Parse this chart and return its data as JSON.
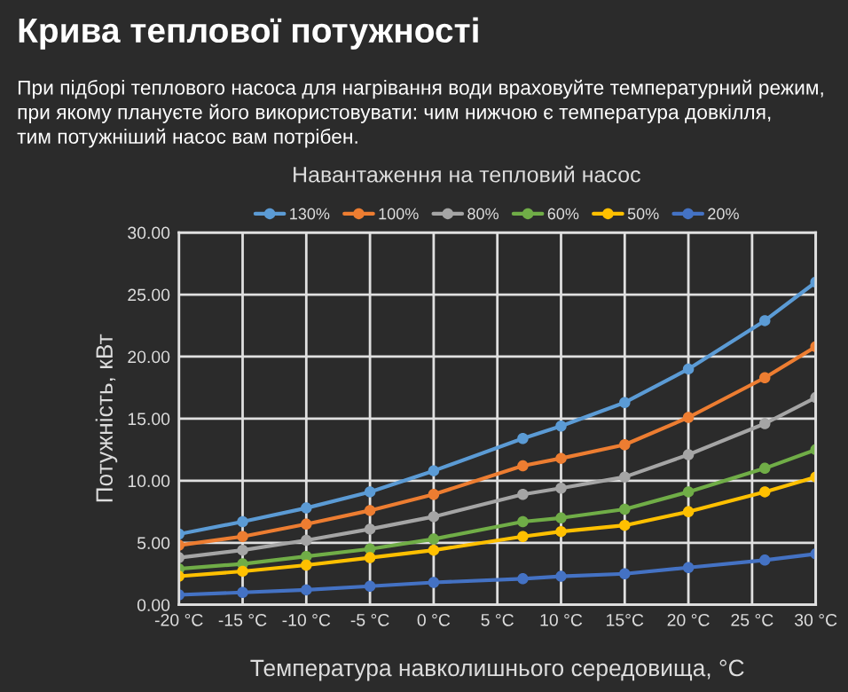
{
  "chart_data": {
    "type": "line",
    "title": "Крива теплової потужності",
    "subtitle": "При підборі теплового насоса для нагрівання води враховуйте температурний режим,\nпри якому плануєте його використовувати: чим нижчою є температура довкілля,\nтим потужніший насос вам потрібен.",
    "annotations": [
      "Навантаження на тепловий насос"
    ],
    "xlabel": "Температура навколишнього середовища, °C",
    "ylabel": "Потужність, кВт",
    "x": [
      -20,
      -15,
      -10,
      -5,
      0,
      7,
      10,
      15,
      20,
      26,
      30
    ],
    "series": [
      {
        "name": "130%",
        "color": "#5b9bd5",
        "values": [
          5.7,
          6.7,
          7.8,
          9.1,
          10.8,
          13.4,
          14.4,
          16.3,
          19.0,
          22.9,
          26.0
        ]
      },
      {
        "name": "100%",
        "color": "#ed7d31",
        "values": [
          4.8,
          5.5,
          6.5,
          7.6,
          8.9,
          11.2,
          11.8,
          12.9,
          15.1,
          18.3,
          20.8
        ]
      },
      {
        "name": "80%",
        "color": "#a5a5a5",
        "values": [
          3.8,
          4.4,
          5.2,
          6.1,
          7.1,
          8.9,
          9.4,
          10.3,
          12.1,
          14.6,
          16.7
        ]
      },
      {
        "name": "60%",
        "color": "#70ad47",
        "values": [
          2.9,
          3.3,
          3.9,
          4.5,
          5.3,
          6.7,
          7.0,
          7.7,
          9.1,
          11.0,
          12.5
        ]
      },
      {
        "name": "50%",
        "color": "#ffc000",
        "values": [
          2.3,
          2.7,
          3.2,
          3.8,
          4.4,
          5.5,
          5.9,
          6.4,
          7.5,
          9.1,
          10.3
        ]
      },
      {
        "name": "20%",
        "color": "#4472c4",
        "values": [
          0.8,
          1.0,
          1.2,
          1.5,
          1.8,
          2.1,
          2.3,
          2.5,
          3.0,
          3.6,
          4.1
        ]
      }
    ],
    "xlim": [
      -20,
      30
    ],
    "xticks": [
      {
        "value": -20,
        "label": "-20 °C"
      },
      {
        "value": -15,
        "label": "-15 °C"
      },
      {
        "value": -10,
        "label": "-10 °C"
      },
      {
        "value": -5,
        "label": "-5 °C"
      },
      {
        "value": 0,
        "label": "0 °C"
      },
      {
        "value": 5,
        "label": "5 °C"
      },
      {
        "value": 10,
        "label": "10 °C"
      },
      {
        "value": 15,
        "label": "15°C"
      },
      {
        "value": 20,
        "label": "20 °C"
      },
      {
        "value": 25,
        "label": "25 °C"
      },
      {
        "value": 30,
        "label": "30 °C"
      }
    ],
    "ylim": [
      0,
      30
    ],
    "yticks": [
      {
        "value": 0,
        "label": "0.00"
      },
      {
        "value": 5,
        "label": "5.00"
      },
      {
        "value": 10,
        "label": "10.00"
      },
      {
        "value": 15,
        "label": "15.00"
      },
      {
        "value": 20,
        "label": "20.00"
      },
      {
        "value": 25,
        "label": "25.00"
      },
      {
        "value": 30,
        "label": "30.00"
      }
    ],
    "grid": true,
    "legend": "top",
    "marker": "circle",
    "line_style": "solid"
  }
}
